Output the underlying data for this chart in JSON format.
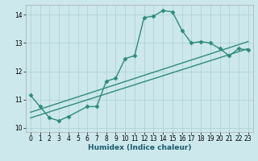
{
  "xlabel": "Humidex (Indice chaleur)",
  "background_color": "#cce8ec",
  "line_color": "#2e8b7a",
  "grid_color": "#aacdd4",
  "xlim": [
    -0.5,
    23.5
  ],
  "ylim": [
    9.85,
    14.35
  ],
  "yticks": [
    10,
    11,
    12,
    13,
    14
  ],
  "xticks": [
    0,
    1,
    2,
    3,
    4,
    5,
    6,
    7,
    8,
    9,
    10,
    11,
    12,
    13,
    14,
    15,
    16,
    17,
    18,
    19,
    20,
    21,
    22,
    23
  ],
  "series": [
    {
      "x": [
        0,
        1,
        2,
        3,
        4,
        6,
        7,
        8,
        9,
        10,
        11,
        12,
        13,
        14,
        15,
        16,
        17,
        18,
        19,
        20,
        21,
        22,
        23
      ],
      "y": [
        11.15,
        10.75,
        10.35,
        10.25,
        10.4,
        10.75,
        10.75,
        11.65,
        11.75,
        12.45,
        12.55,
        13.9,
        13.95,
        14.15,
        14.1,
        13.45,
        13.0,
        13.05,
        13.0,
        12.8,
        12.55,
        12.8,
        12.75
      ],
      "marker": "D",
      "markersize": 2.5,
      "linewidth": 1.0
    },
    {
      "x": [
        0,
        23
      ],
      "y": [
        10.55,
        13.05
      ],
      "marker": null,
      "markersize": 0,
      "linewidth": 1.0
    },
    {
      "x": [
        0,
        23
      ],
      "y": [
        10.35,
        12.8
      ],
      "marker": null,
      "markersize": 0,
      "linewidth": 1.0
    }
  ]
}
